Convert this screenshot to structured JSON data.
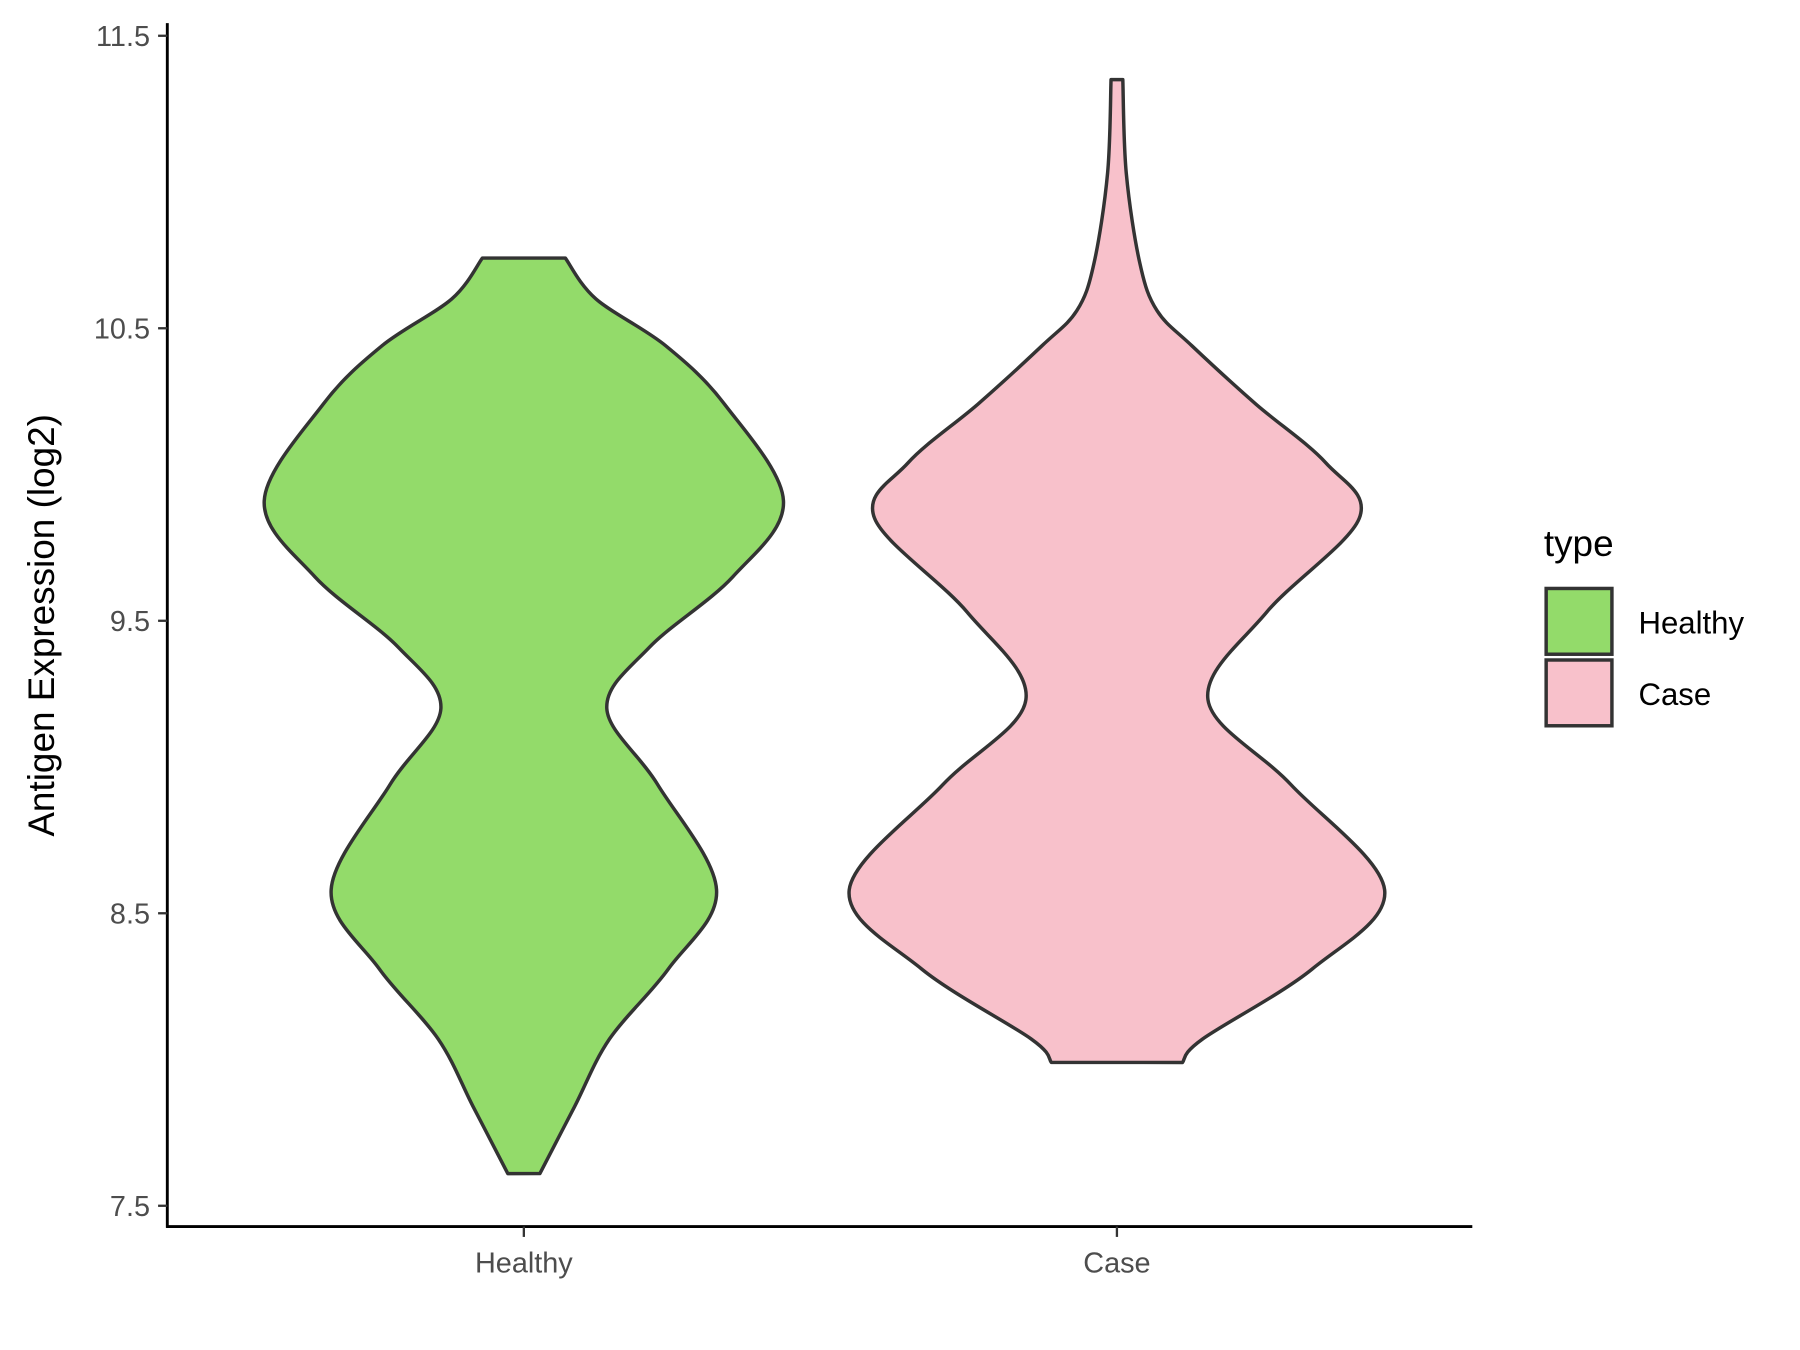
{
  "chart_data": {
    "type": "violin",
    "title": "",
    "xlabel": "",
    "ylabel": "Antigen Expression (log2)",
    "ylim": [
      7.45,
      11.54
    ],
    "yticks": [
      "7.5",
      "8.5",
      "9.5",
      "10.5",
      "11.5"
    ],
    "categories": [
      "Healthy",
      "Case"
    ],
    "legend": {
      "title": "type",
      "position": "right",
      "entries": [
        "Healthy",
        "Case"
      ]
    },
    "series": [
      {
        "name": "Healthy",
        "color": "#93DB6A",
        "min": 7.61,
        "max": 10.74,
        "density_profile": [
          [
            10.74,
            0.155
          ],
          [
            10.6,
            0.27
          ],
          [
            10.44,
            0.53
          ],
          [
            10.24,
            0.75
          ],
          [
            9.91,
            0.97
          ],
          [
            9.65,
            0.78
          ],
          [
            9.41,
            0.47
          ],
          [
            9.2,
            0.31
          ],
          [
            8.94,
            0.5
          ],
          [
            8.58,
            0.72
          ],
          [
            8.31,
            0.54
          ],
          [
            8.07,
            0.32
          ],
          [
            7.84,
            0.19
          ],
          [
            7.61,
            0.06
          ]
        ]
      },
      {
        "name": "Case",
        "color": "#F8C1CB",
        "min": 7.99,
        "max": 11.35,
        "density_profile": [
          [
            11.35,
            0.022
          ],
          [
            11.03,
            0.035
          ],
          [
            10.72,
            0.086
          ],
          [
            10.56,
            0.15
          ],
          [
            10.44,
            0.28
          ],
          [
            10.24,
            0.52
          ],
          [
            10.04,
            0.78
          ],
          [
            9.85,
            0.905
          ],
          [
            9.53,
            0.56
          ],
          [
            9.23,
            0.34
          ],
          [
            8.94,
            0.65
          ],
          [
            8.58,
            1.0
          ],
          [
            8.31,
            0.73
          ],
          [
            8.07,
            0.32
          ],
          [
            7.99,
            0.245
          ]
        ]
      }
    ]
  }
}
